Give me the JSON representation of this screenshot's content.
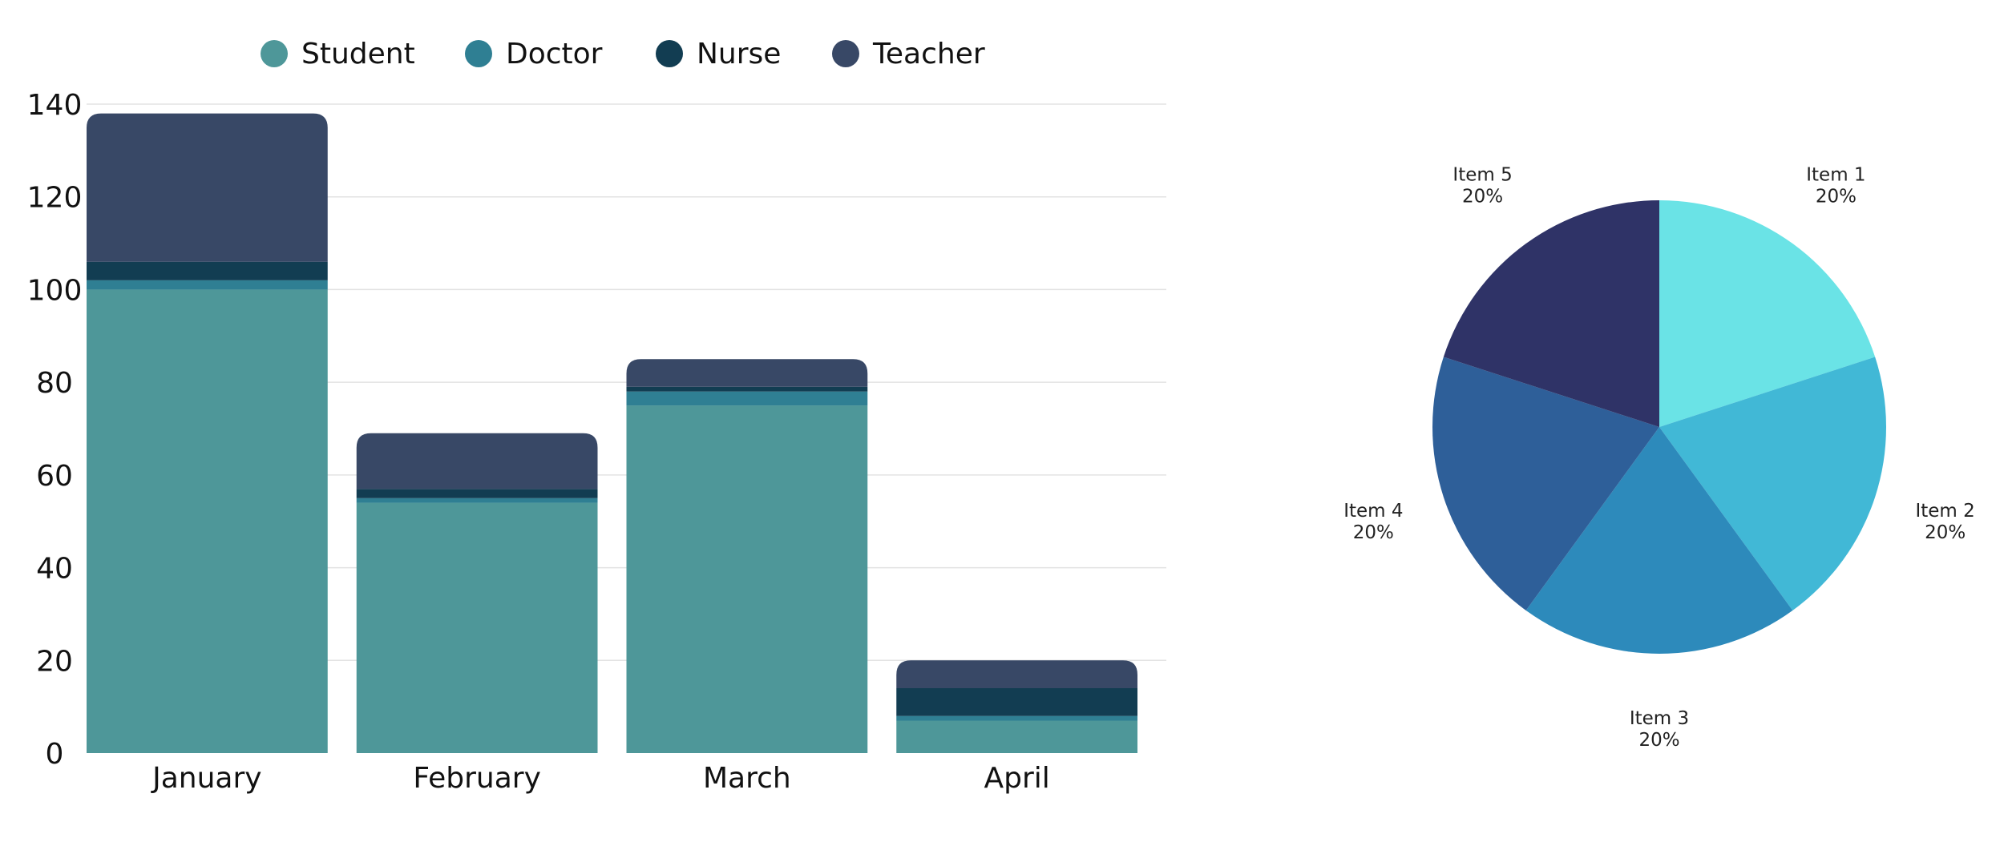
{
  "chart_data": [
    {
      "type": "bar",
      "stacked": true,
      "categories": [
        "January",
        "February",
        "March",
        "April"
      ],
      "series": [
        {
          "name": "Student",
          "color": "#4e9799",
          "values": [
            100,
            54,
            75,
            7
          ]
        },
        {
          "name": "Doctor",
          "color": "#2f7f93",
          "values": [
            2,
            1,
            3,
            1
          ]
        },
        {
          "name": "Nurse",
          "color": "#123d52",
          "values": [
            4,
            2,
            1,
            6
          ]
        },
        {
          "name": "Teacher",
          "color": "#384866",
          "values": [
            32,
            12,
            6,
            6
          ]
        }
      ],
      "yticks": [
        0,
        20,
        40,
        60,
        80,
        100,
        120,
        140
      ],
      "ylim": [
        0,
        140
      ],
      "grid": true,
      "legend_position": "top"
    },
    {
      "type": "pie",
      "slices": [
        {
          "label": "Item 1",
          "value": 20,
          "percent_label": "20%",
          "color": "#6ae3e6"
        },
        {
          "label": "Item 2",
          "value": 20,
          "percent_label": "20%",
          "color": "#41b8d6"
        },
        {
          "label": "Item 3",
          "value": 20,
          "percent_label": "20%",
          "color": "#2d8abb"
        },
        {
          "label": "Item 4",
          "value": 20,
          "percent_label": "20%",
          "color": "#2e5f99"
        },
        {
          "label": "Item 5",
          "value": 20,
          "percent_label": "20%",
          "color": "#2f3367"
        }
      ]
    }
  ]
}
